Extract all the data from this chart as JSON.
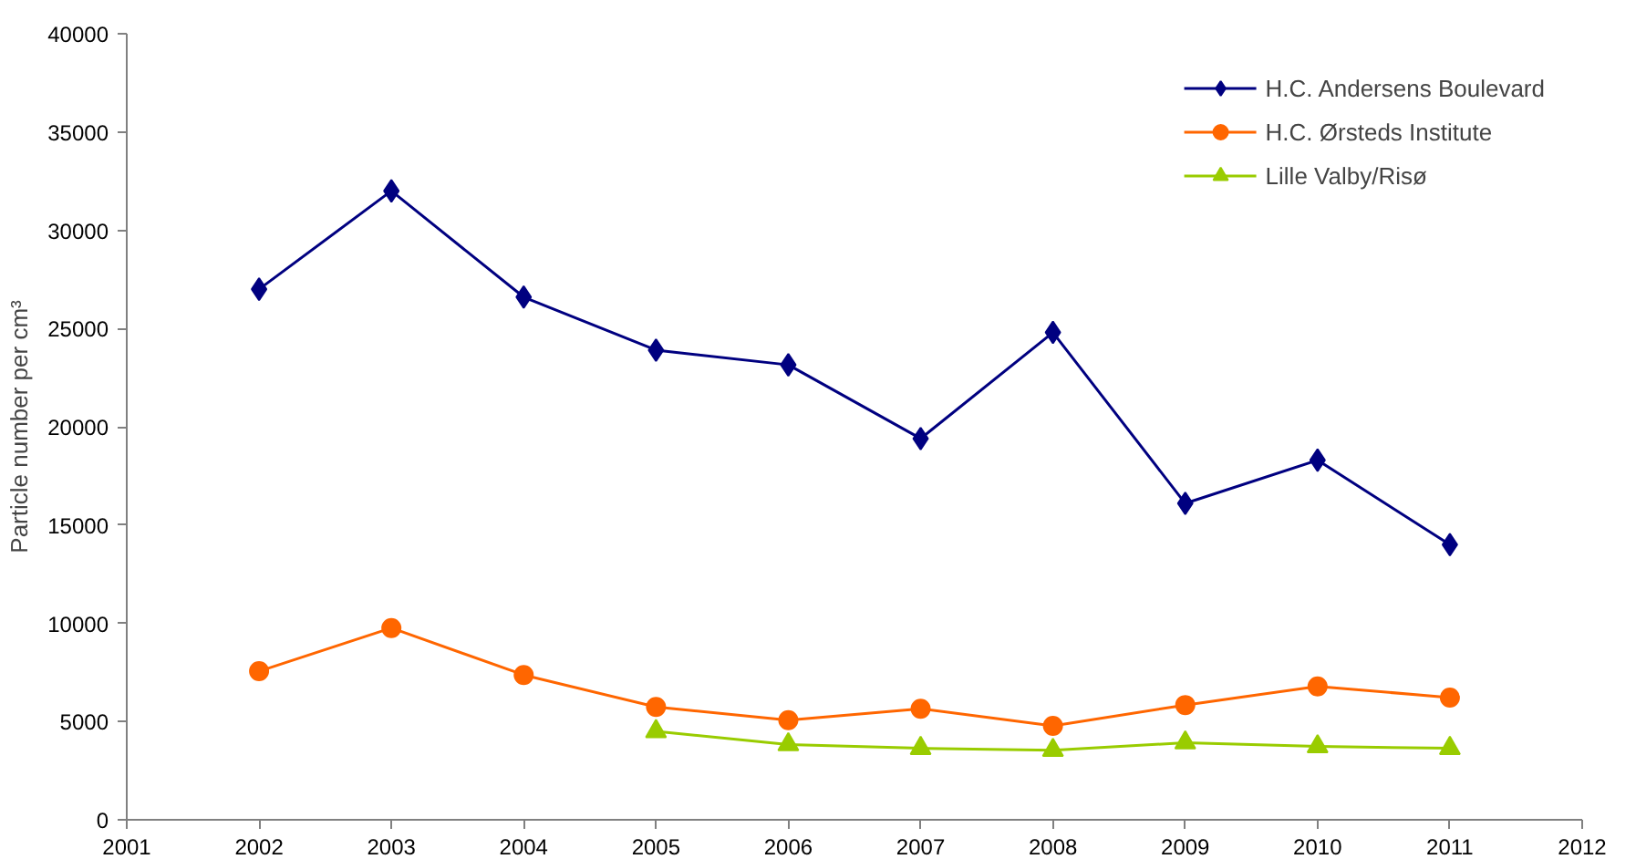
{
  "chart_data": {
    "type": "line",
    "ylabel": "Particle number per cm³",
    "xlim": [
      2001,
      2012
    ],
    "xticks": [
      2001,
      2002,
      2003,
      2004,
      2005,
      2006,
      2007,
      2008,
      2009,
      2010,
      2011,
      2012
    ],
    "ylim": [
      0,
      40000
    ],
    "yticks": [
      0,
      5000,
      10000,
      15000,
      20000,
      25000,
      30000,
      35000,
      40000
    ],
    "grid": false,
    "legend": "top right",
    "series": [
      {
        "name": "H.C. Andersens Boulevard",
        "color": "#000080",
        "marker": "diamond",
        "x": [
          2002,
          2003,
          2004,
          2005,
          2006,
          2007,
          2008,
          2009,
          2010,
          2011
        ],
        "values": [
          27000,
          32000,
          26600,
          23900,
          23150,
          19400,
          24800,
          16100,
          18300,
          14000
        ]
      },
      {
        "name": "H.C. Ørsteds Institute",
        "color": "#ff6600",
        "marker": "circle",
        "x": [
          2002,
          2003,
          2004,
          2005,
          2006,
          2007,
          2008,
          2009,
          2010,
          2011
        ],
        "values": [
          7560,
          9760,
          7370,
          5740,
          5070,
          5650,
          4780,
          5840,
          6790,
          6220
        ]
      },
      {
        "name": "Lille Valby/Risø",
        "color": "#99cc00",
        "marker": "triangle",
        "x": [
          2005,
          2006,
          2007,
          2008,
          2009,
          2010,
          2011
        ],
        "values": [
          4500,
          3830,
          3640,
          3540,
          3920,
          3730,
          3640
        ]
      }
    ]
  }
}
